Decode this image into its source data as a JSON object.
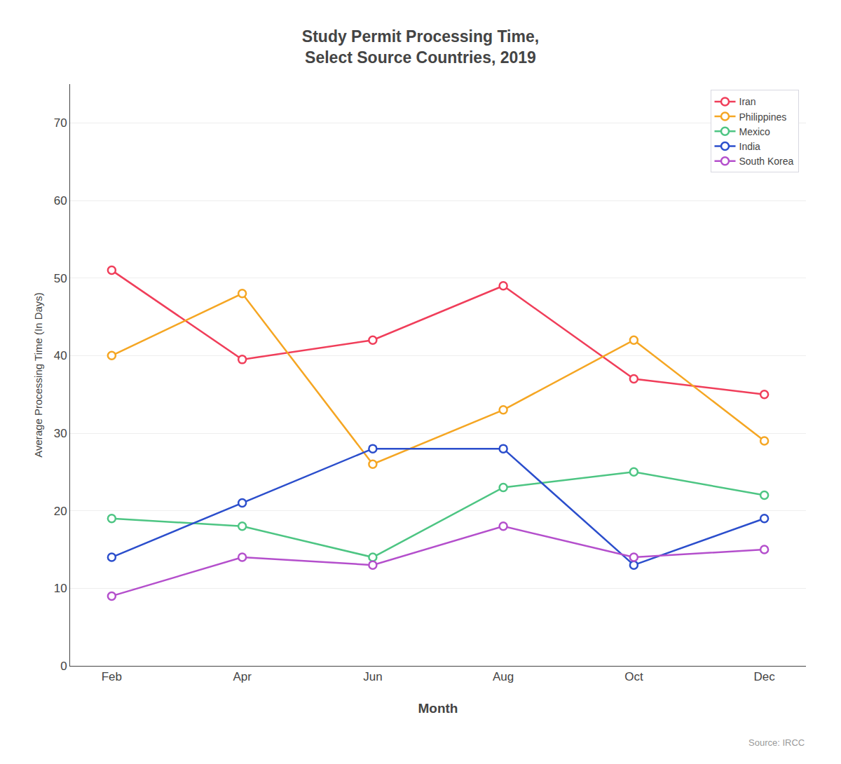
{
  "chart_data": {
    "type": "line",
    "title": "Study Permit Processing Time,\nSelect Source Countries, 2019",
    "x_label": "Month",
    "y_label": "Average Processing Time (In Days)",
    "categories": [
      "Feb",
      "Apr",
      "Jun",
      "Aug",
      "Oct",
      "Dec"
    ],
    "series": [
      {
        "name": "Iran",
        "color": "#F03E5A",
        "values": [
          51,
          39.5,
          42,
          49,
          37,
          35
        ]
      },
      {
        "name": "Philippines",
        "color": "#F5A623",
        "values": [
          40,
          48,
          26,
          33,
          42,
          29
        ]
      },
      {
        "name": "Mexico",
        "color": "#4DC583",
        "values": [
          19,
          18,
          14,
          23,
          25,
          22
        ]
      },
      {
        "name": "India",
        "color": "#2B4ECC",
        "values": [
          14,
          21,
          28,
          28,
          13,
          19
        ]
      },
      {
        "name": "South Korea",
        "color": "#B44FCC",
        "values": [
          9,
          14,
          13,
          18,
          14,
          15
        ]
      }
    ],
    "ylim": [
      0,
      75
    ],
    "yticks": [
      0,
      10,
      20,
      30,
      40,
      50,
      60,
      70
    ],
    "grid": true,
    "legend": "upper right",
    "marker": "circle",
    "annotations": [
      "Source: IRCC"
    ]
  }
}
